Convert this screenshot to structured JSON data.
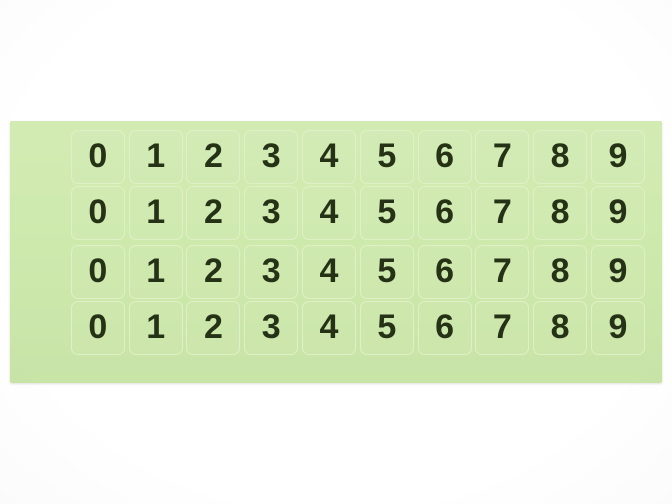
{
  "sheet": {
    "rows": [
      {
        "cells": [
          "0",
          "1",
          "2",
          "3",
          "4",
          "5",
          "6",
          "7",
          "8",
          "9"
        ]
      },
      {
        "cells": [
          "0",
          "1",
          "2",
          "3",
          "4",
          "5",
          "6",
          "7",
          "8",
          "9"
        ]
      },
      {
        "cells": [
          "0",
          "1",
          "2",
          "3",
          "4",
          "5",
          "6",
          "7",
          "8",
          "9"
        ]
      },
      {
        "cells": [
          "0",
          "1",
          "2",
          "3",
          "4",
          "5",
          "6",
          "7",
          "8",
          "9"
        ]
      }
    ]
  },
  "colors": {
    "background": "#ffffff",
    "sheet_green": "#cde9ab",
    "diecut_line": "#e0f0c6",
    "digit": "#263216"
  }
}
